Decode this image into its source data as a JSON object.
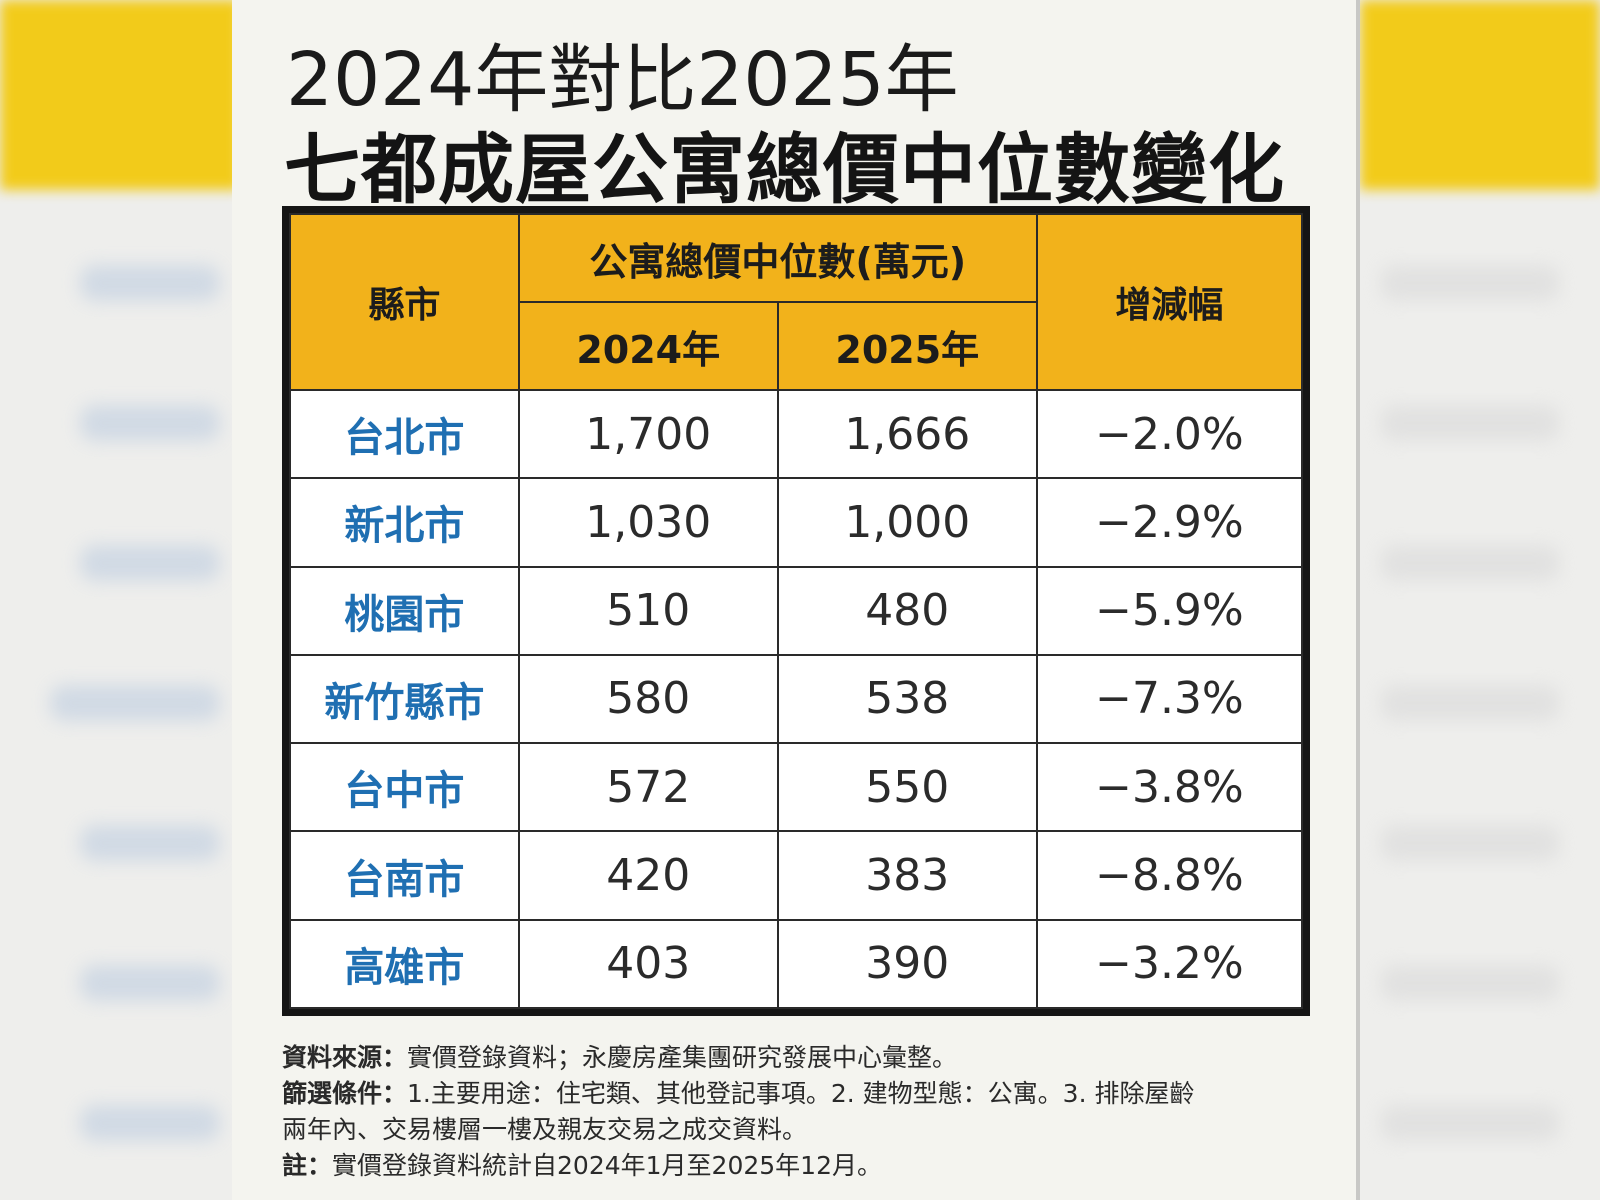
{
  "title": {
    "line1": "2024年對比2025年",
    "line2": "七都成屋公寓總價中位數變化"
  },
  "table": {
    "headers": {
      "city": "縣市",
      "group": "公寓總價中位數(萬元)",
      "y2024": "2024年",
      "y2025": "2025年",
      "change": "增減幅"
    },
    "rows": [
      {
        "city": "台北市",
        "y2024": "1,700",
        "y2025": "1,666",
        "change": "−2.0%"
      },
      {
        "city": "新北市",
        "y2024": "1,030",
        "y2025": "1,000",
        "change": "−2.9%"
      },
      {
        "city": "桃園市",
        "y2024": "510",
        "y2025": "480",
        "change": "−5.9%"
      },
      {
        "city": "新竹縣市",
        "y2024": "580",
        "y2025": "538",
        "change": "−7.3%"
      },
      {
        "city": "台中市",
        "y2024": "572",
        "y2025": "550",
        "change": "−3.8%"
      },
      {
        "city": "台南市",
        "y2024": "420",
        "y2025": "383",
        "change": "−8.8%"
      },
      {
        "city": "高雄市",
        "y2024": "403",
        "y2025": "390",
        "change": "−3.2%"
      }
    ]
  },
  "notes": {
    "source_label": "資料來源：",
    "source_text": "實價登錄資料；永慶房產集團研究發展中心彙整。",
    "filter_label": "篩選條件：",
    "filter_text": "1.主要用途：住宅類、其他登記事項。2. 建物型態：公寓。3. 排除屋齡",
    "filter_text2": "兩年內、交易樓層一樓及親友交易之成交資料。",
    "note_label": "註：",
    "note_text": "實價登錄資料統計自2024年1月至2025年12月。"
  },
  "colors": {
    "header_bg": "#f2b21b",
    "city_text": "#1f6fb2",
    "border": "#151515",
    "card_bg": "#f4f4ef"
  }
}
